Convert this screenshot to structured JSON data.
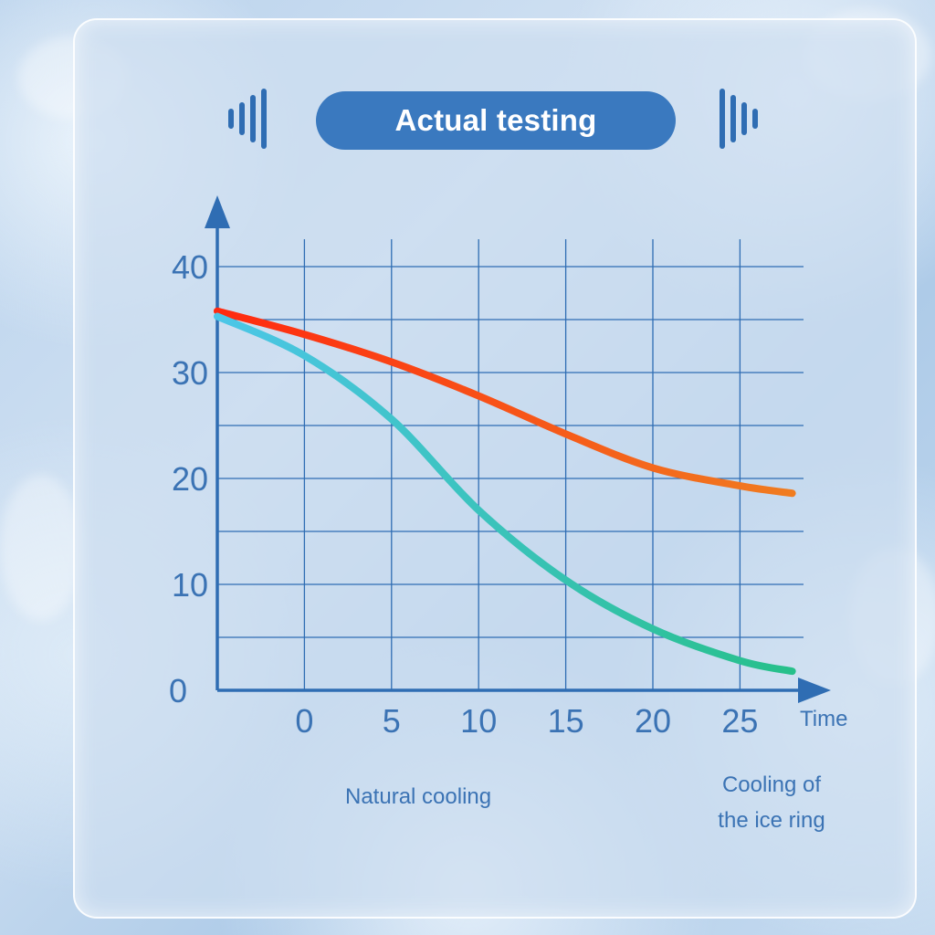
{
  "header": {
    "title": "Actual testing",
    "left_icon": "sound-wave-icon",
    "right_icon": "sound-wave-icon"
  },
  "colors": {
    "panel_accent": "#3a79bf",
    "axis": "#2f6db3",
    "natural_start": "#ff2a10",
    "natural_end": "#f07c20",
    "ice_start": "#4cc6e8",
    "ice_end": "#27c08a"
  },
  "chart_data": {
    "type": "line",
    "title": "",
    "xlabel": "Time",
    "ylabel": "",
    "xlim": [
      -5,
      30
    ],
    "ylim": [
      0,
      40
    ],
    "x_ticks": [
      0,
      5,
      10,
      15,
      20,
      25
    ],
    "y_ticks": [
      0,
      10,
      20,
      30,
      40
    ],
    "grid": true,
    "legend_position": "bottom",
    "series": [
      {
        "name": "Natural cooling",
        "x": [
          -5,
          0,
          5,
          10,
          15,
          20,
          25,
          28
        ],
        "values": [
          35.8,
          33.6,
          31,
          27.8,
          24.2,
          21,
          19.3,
          18.6
        ]
      },
      {
        "name": "Cooling of the ice ring",
        "name_lines": [
          "Cooling of",
          "the ice ring"
        ],
        "x": [
          -5,
          0,
          5,
          10,
          15,
          20,
          25,
          28
        ],
        "values": [
          35.3,
          31.6,
          25.6,
          17,
          10.4,
          5.8,
          2.8,
          1.8
        ]
      }
    ]
  }
}
